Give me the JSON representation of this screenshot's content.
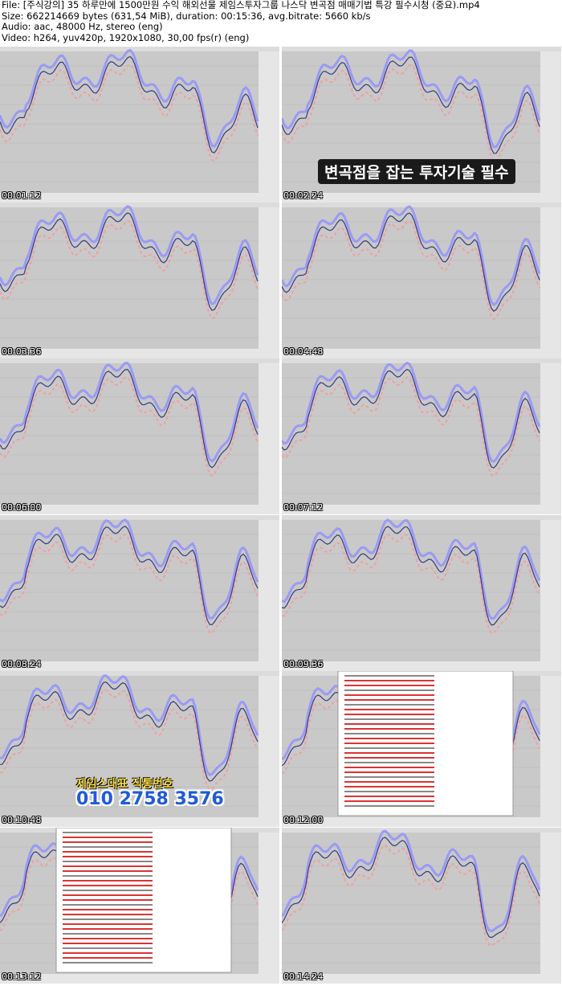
{
  "header": {
    "file": "File: [주식강의] 35 하루만에 1500만원 수익 해외선물 제임스투자그룹 나스닥 변곡점 매매기법 특강 필수시청 (중요).mp4",
    "size": "Size: 662214669 bytes (631,54 MiB), duration: 00:15:36, avg.bitrate: 5660 kb/s",
    "audio": "Audio: aac, 48000 Hz, stereo (eng)",
    "video": "Video: h264, yuv420p, 1920x1080, 30,00 fps(r) (eng)"
  },
  "thumbnails": [
    {
      "time": "00:01:12"
    },
    {
      "time": "00:02:24",
      "caption": "변곡점을 잡는 투자기술 필수"
    },
    {
      "time": "00:03:36"
    },
    {
      "time": "00:04:48"
    },
    {
      "time": "00:06:00"
    },
    {
      "time": "00:07:12"
    },
    {
      "time": "00:08:24"
    },
    {
      "time": "00:09:36"
    },
    {
      "time": "00:10:48",
      "caption": "제임스대표 직통번호",
      "phone": "010 2758 3576"
    },
    {
      "time": "00:12:00"
    },
    {
      "time": "00:13:12"
    },
    {
      "time": "00:14:24"
    }
  ]
}
